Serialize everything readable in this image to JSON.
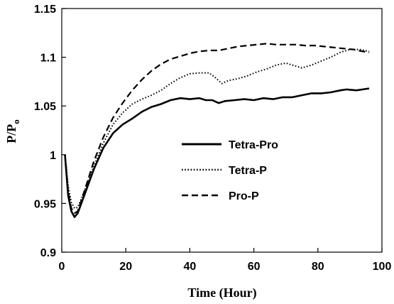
{
  "chart_data": {
    "type": "line",
    "title": "",
    "xlabel": "Time (Hour)",
    "ylabel": {
      "main": "P/P",
      "sub": "o"
    },
    "xlim": [
      0,
      100
    ],
    "ylim": [
      0.9,
      1.15
    ],
    "xticks": [
      0,
      20,
      40,
      60,
      80,
      100
    ],
    "yticks": [
      0.9,
      0.95,
      1.0,
      1.05,
      1.1,
      1.15
    ],
    "xtick_labels": [
      "0",
      "20",
      "40",
      "60",
      "80",
      "100"
    ],
    "ytick_labels": [
      "0.9",
      "0.95",
      "1",
      "1.05",
      "1.1",
      "1.15"
    ],
    "grid": false,
    "legend_position": "center-right",
    "series": [
      {
        "name": "Tetra-Pro",
        "style": "solid",
        "color": "#000000",
        "points": [
          [
            1,
            1.0
          ],
          [
            2,
            0.958
          ],
          [
            3,
            0.942
          ],
          [
            4,
            0.936
          ],
          [
            5,
            0.94
          ],
          [
            7,
            0.958
          ],
          [
            10,
            0.985
          ],
          [
            13,
            1.007
          ],
          [
            16,
            1.022
          ],
          [
            19,
            1.031
          ],
          [
            22,
            1.037
          ],
          [
            25,
            1.044
          ],
          [
            28,
            1.049
          ],
          [
            31,
            1.052
          ],
          [
            34,
            1.056
          ],
          [
            37,
            1.058
          ],
          [
            40,
            1.057
          ],
          [
            43,
            1.058
          ],
          [
            45,
            1.056
          ],
          [
            47,
            1.056
          ],
          [
            49,
            1.053
          ],
          [
            51,
            1.055
          ],
          [
            54,
            1.056
          ],
          [
            57,
            1.057
          ],
          [
            60,
            1.056
          ],
          [
            63,
            1.058
          ],
          [
            66,
            1.057
          ],
          [
            69,
            1.059
          ],
          [
            72,
            1.059
          ],
          [
            75,
            1.061
          ],
          [
            78,
            1.063
          ],
          [
            81,
            1.063
          ],
          [
            84,
            1.064
          ],
          [
            87,
            1.066
          ],
          [
            89,
            1.067
          ],
          [
            92,
            1.066
          ],
          [
            94,
            1.067
          ],
          [
            96,
            1.068
          ]
        ]
      },
      {
        "name": "Tetra-P",
        "style": "dotted",
        "color": "#000000",
        "points": [
          [
            1,
            1.0
          ],
          [
            2,
            0.968
          ],
          [
            3,
            0.951
          ],
          [
            4,
            0.945
          ],
          [
            5,
            0.946
          ],
          [
            7,
            0.962
          ],
          [
            10,
            0.988
          ],
          [
            13,
            1.012
          ],
          [
            16,
            1.031
          ],
          [
            19,
            1.043
          ],
          [
            22,
            1.052
          ],
          [
            25,
            1.057
          ],
          [
            28,
            1.061
          ],
          [
            31,
            1.066
          ],
          [
            34,
            1.073
          ],
          [
            37,
            1.079
          ],
          [
            40,
            1.083
          ],
          [
            43,
            1.084
          ],
          [
            46,
            1.084
          ],
          [
            48,
            1.079
          ],
          [
            50,
            1.073
          ],
          [
            52,
            1.076
          ],
          [
            55,
            1.078
          ],
          [
            58,
            1.081
          ],
          [
            61,
            1.085
          ],
          [
            64,
            1.088
          ],
          [
            67,
            1.092
          ],
          [
            70,
            1.094
          ],
          [
            72,
            1.092
          ],
          [
            75,
            1.089
          ],
          [
            78,
            1.092
          ],
          [
            81,
            1.096
          ],
          [
            84,
            1.1
          ],
          [
            87,
            1.105
          ],
          [
            90,
            1.108
          ],
          [
            93,
            1.108
          ],
          [
            96,
            1.106
          ]
        ]
      },
      {
        "name": "Pro-P",
        "style": "dashed",
        "color": "#000000",
        "points": [
          [
            1,
            1.0
          ],
          [
            2,
            0.962
          ],
          [
            3,
            0.945
          ],
          [
            4,
            0.94
          ],
          [
            5,
            0.942
          ],
          [
            7,
            0.962
          ],
          [
            10,
            0.993
          ],
          [
            13,
            1.018
          ],
          [
            16,
            1.038
          ],
          [
            19,
            1.053
          ],
          [
            22,
            1.066
          ],
          [
            25,
            1.077
          ],
          [
            28,
            1.086
          ],
          [
            31,
            1.093
          ],
          [
            34,
            1.098
          ],
          [
            37,
            1.101
          ],
          [
            40,
            1.104
          ],
          [
            43,
            1.106
          ],
          [
            46,
            1.107
          ],
          [
            49,
            1.107
          ],
          [
            52,
            1.109
          ],
          [
            55,
            1.111
          ],
          [
            58,
            1.112
          ],
          [
            61,
            1.113
          ],
          [
            64,
            1.114
          ],
          [
            67,
            1.113
          ],
          [
            70,
            1.113
          ],
          [
            73,
            1.113
          ],
          [
            76,
            1.112
          ],
          [
            79,
            1.112
          ],
          [
            82,
            1.111
          ],
          [
            85,
            1.11
          ],
          [
            88,
            1.109
          ],
          [
            91,
            1.108
          ],
          [
            94,
            1.106
          ],
          [
            96,
            1.105
          ]
        ]
      }
    ]
  }
}
